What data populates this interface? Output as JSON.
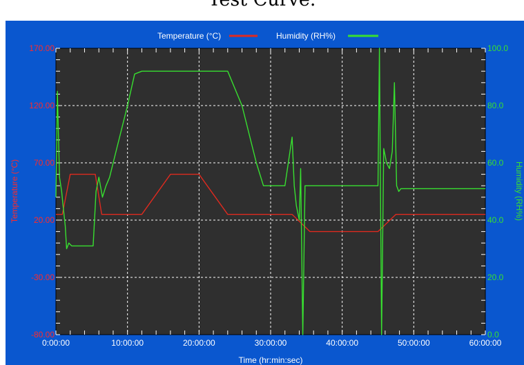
{
  "page": {
    "title": "Test Curve."
  },
  "colors": {
    "panel": "#0a57cf",
    "plot_bg": "#2f2f2f",
    "grid": "#ffffff",
    "temperature": "#e02a1f",
    "humidity": "#38e030",
    "x_tick_text": "#ffffff",
    "temp_tick_text": "#ff2a2a",
    "hum_tick_text": "#38e030"
  },
  "chart_data": {
    "type": "line",
    "title": "",
    "xlabel": "Time (hr:min:sec)",
    "ylabel": "Temperature (°C)",
    "y2label": "Humidity (RH%)",
    "legend": {
      "placement": "top-center"
    },
    "grid": true,
    "xlim": [
      0,
      60
    ],
    "ylim": [
      -80,
      170
    ],
    "y2lim": [
      0,
      100
    ],
    "x_ticks": [
      0,
      10,
      20,
      30,
      40,
      50,
      60
    ],
    "x_tick_labels": [
      "0:00:00",
      "10:00:00",
      "20:00:00",
      "30:00:00",
      "40:00:00",
      "50:00:00",
      "60:00:00"
    ],
    "y_ticks": [
      -80,
      -30,
      20,
      70,
      120,
      170
    ],
    "y_tick_labels": [
      "-80.00",
      "-30.00",
      "20.00",
      "70.00",
      "120.00",
      "170.00"
    ],
    "y2_ticks": [
      0,
      20,
      40,
      60,
      80,
      100
    ],
    "y2_tick_labels": [
      "0.0",
      "20.0",
      "40.0",
      "60.0",
      "80.0",
      "100.0"
    ],
    "series": [
      {
        "name": "Temperature (°C)",
        "axis": "left",
        "x": [
          0,
          0.9,
          2.0,
          5.5,
          6.4,
          12.0,
          16.0,
          20.0,
          24.0,
          33.0,
          35.5,
          45.0,
          47.5,
          60.0
        ],
        "y": [
          25,
          25,
          60,
          60,
          25,
          25,
          60,
          60,
          25,
          25,
          10,
          10,
          25,
          25
        ]
      },
      {
        "name": "Humidity (RH%)",
        "axis": "right",
        "x": [
          0,
          0.2,
          0.5,
          0.8,
          1.0,
          1.3,
          1.5,
          1.8,
          2.2,
          3.0,
          4.5,
          5.2,
          5.6,
          6.0,
          6.5,
          7.0,
          7.5,
          8.0,
          9.0,
          10.0,
          11.0,
          12.0,
          14.0,
          16.0,
          20.0,
          22.0,
          24.0,
          26.0,
          28.0,
          29.0,
          30.0,
          31.0,
          32.0,
          33.0,
          33.3,
          33.6,
          34.0,
          34.2,
          34.5,
          34.8,
          35.2,
          36.0,
          38.0,
          40.0,
          42.0,
          44.0,
          45.0,
          45.2,
          45.5,
          45.8,
          46.2,
          46.6,
          47.0,
          47.3,
          47.6,
          47.9,
          48.2,
          48.5,
          49.0,
          52.0,
          60.0
        ],
        "y": [
          48,
          85,
          55,
          50,
          45,
          38,
          30,
          32,
          31,
          31,
          31,
          31,
          50,
          55,
          48,
          52,
          55,
          60,
          70,
          80,
          91,
          92,
          92,
          92,
          92,
          92,
          92,
          80,
          60,
          52,
          52,
          52,
          52,
          69,
          52,
          45,
          40,
          58,
          0,
          52,
          52,
          52,
          52,
          52,
          52,
          52,
          52,
          100,
          0,
          65,
          60,
          58,
          64,
          88,
          52,
          50,
          51,
          51,
          51,
          51,
          51
        ]
      }
    ]
  }
}
